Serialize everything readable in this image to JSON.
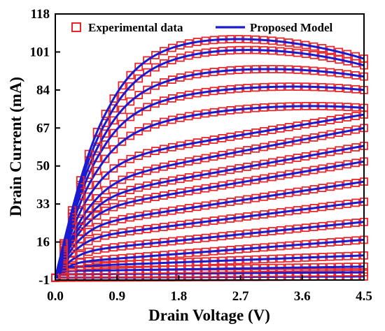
{
  "chart_data": {
    "type": "line",
    "xlabel": "Drain Voltage (V)",
    "ylabel": "Drain Current (mA)",
    "xlim": [
      0,
      4.5
    ],
    "ylim": [
      -1,
      118
    ],
    "x_ticks": [
      "0.0",
      "0.9",
      "1.8",
      "2.7",
      "3.6",
      "4.5"
    ],
    "y_ticks": [
      "-1",
      "16",
      "33",
      "50",
      "67",
      "84",
      "101",
      "118"
    ],
    "grid": false,
    "legend_position": "top",
    "legend": [
      "Experimental data",
      "Proposed Model"
    ],
    "colors": {
      "experimental": "#e8262a",
      "model": "#1a1ad0"
    },
    "marker": "open-square",
    "curve_x_range": [
      0,
      4.5
    ],
    "sample_count": 38,
    "series": [
      {
        "vsat": 0.012,
        "end": [
          0,
          0.6
        ],
        "peak": 0.3
      },
      {
        "vsat": 0.06,
        "end": [
          1.5,
          2.5
        ],
        "peak": 2.5
      },
      {
        "vsat": 0.09,
        "end": [
          3,
          5
        ],
        "peak": 5
      },
      {
        "vsat": 0.15,
        "end": [
          5,
          10
        ],
        "peak": 10
      },
      {
        "vsat": 0.22,
        "end": [
          7,
          17
        ],
        "peak": 17
      },
      {
        "vsat": 0.3,
        "end": [
          12,
          25
        ],
        "peak": 25
      },
      {
        "vsat": 0.35,
        "end": [
          18,
          34
        ],
        "peak": 34
      },
      {
        "vsat": 0.4,
        "end": [
          24,
          43
        ],
        "peak": 43
      },
      {
        "vsat": 0.45,
        "end": [
          31,
          52
        ],
        "peak": 52
      },
      {
        "vsat": 0.5,
        "end": [
          37,
          59
        ],
        "peak": 59
      },
      {
        "vsat": 0.55,
        "end": [
          44,
          67
        ],
        "peak": 67
      },
      {
        "vsat": 0.58,
        "end": [
          53,
          73
        ],
        "peak": 73
      },
      {
        "vsat": 0.63,
        "end": [
          64,
          76
        ],
        "peak": 81
      },
      {
        "vsat": 0.68,
        "end": [
          75,
          84
        ],
        "peak": 89
      },
      {
        "vsat": 0.72,
        "end": [
          84,
          90
        ],
        "peak": 96
      },
      {
        "vsat": 0.76,
        "end": [
          93,
          95
        ],
        "peak": 103
      },
      {
        "vsat": 0.78,
        "end": [
          100,
          98
        ],
        "peak": 108
      }
    ]
  }
}
